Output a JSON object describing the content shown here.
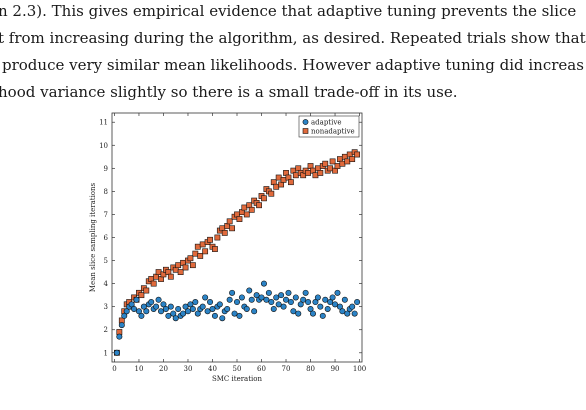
{
  "paragraph": {
    "lines": [
      "n 2.3). This gives empirical evidence that adaptive tuning prevents the slice",
      "t from increasing during the algorithm, as desired. Repeated trials show that",
      "produce very similar mean likelihoods. However adaptive tuning did increas",
      "hood variance slightly so there is a small trade-off in its use."
    ]
  },
  "chart_data": {
    "type": "scatter",
    "xlabel": "SMC iteration",
    "ylabel": "Mean slice sampling iterations",
    "xlim": [
      -1,
      101
    ],
    "ylim": [
      0.6,
      11.4
    ],
    "xticks": [
      0,
      10,
      20,
      30,
      40,
      50,
      60,
      70,
      80,
      90,
      100
    ],
    "yticks": [
      1,
      2,
      3,
      4,
      5,
      6,
      7,
      8,
      9,
      10,
      11
    ],
    "grid": false,
    "legend_position": "top-right",
    "series": [
      {
        "name": "adaptive",
        "marker": "circle",
        "color": "#2b83c6",
        "x": [
          1,
          2,
          3,
          4,
          5,
          6,
          7,
          8,
          9,
          10,
          11,
          12,
          13,
          14,
          15,
          16,
          17,
          18,
          19,
          20,
          21,
          22,
          23,
          24,
          25,
          26,
          27,
          28,
          29,
          30,
          31,
          32,
          33,
          34,
          35,
          36,
          37,
          38,
          39,
          40,
          41,
          42,
          43,
          44,
          45,
          46,
          47,
          48,
          49,
          50,
          51,
          52,
          53,
          54,
          55,
          56,
          57,
          58,
          59,
          60,
          61,
          62,
          63,
          64,
          65,
          66,
          67,
          68,
          69,
          70,
          71,
          72,
          73,
          74,
          75,
          76,
          77,
          78,
          79,
          80,
          81,
          82,
          83,
          84,
          85,
          86,
          87,
          88,
          89,
          90,
          91,
          92,
          93,
          94,
          95,
          96,
          97,
          98,
          99
        ],
        "y": [
          1.0,
          1.7,
          2.2,
          2.6,
          2.8,
          3.0,
          3.1,
          2.9,
          3.3,
          2.8,
          2.6,
          3.0,
          2.8,
          3.1,
          3.2,
          2.9,
          3.0,
          3.3,
          2.8,
          3.1,
          2.9,
          2.6,
          3.0,
          2.7,
          2.5,
          2.9,
          2.6,
          2.7,
          3.0,
          2.8,
          3.1,
          2.9,
          3.2,
          2.7,
          2.9,
          3.0,
          3.4,
          2.8,
          3.2,
          2.9,
          2.6,
          3.0,
          3.1,
          2.5,
          2.8,
          2.9,
          3.3,
          3.6,
          2.7,
          3.2,
          2.6,
          3.4,
          3.0,
          2.9,
          3.7,
          3.3,
          2.8,
          3.5,
          3.3,
          3.4,
          4.0,
          3.3,
          3.6,
          3.2,
          2.9,
          3.4,
          3.1,
          3.5,
          3.0,
          3.3,
          3.6,
          3.2,
          2.8,
          3.4,
          2.7,
          3.1,
          3.3,
          3.6,
          3.2,
          2.9,
          2.7,
          3.2,
          3.4,
          3.0,
          2.6,
          3.3,
          2.9,
          3.2,
          3.4,
          3.1,
          3.6,
          3.0,
          2.8,
          3.3,
          2.7,
          2.9,
          3.0,
          2.7,
          3.2
        ]
      },
      {
        "name": "nonadaptive",
        "marker": "square",
        "color": "#e06a3c",
        "x": [
          1,
          2,
          3,
          4,
          5,
          6,
          7,
          8,
          9,
          10,
          11,
          12,
          13,
          14,
          15,
          16,
          17,
          18,
          19,
          20,
          21,
          22,
          23,
          24,
          25,
          26,
          27,
          28,
          29,
          30,
          31,
          32,
          33,
          34,
          35,
          36,
          37,
          38,
          39,
          40,
          41,
          42,
          43,
          44,
          45,
          46,
          47,
          48,
          49,
          50,
          51,
          52,
          53,
          54,
          55,
          56,
          57,
          58,
          59,
          60,
          61,
          62,
          63,
          64,
          65,
          66,
          67,
          68,
          69,
          70,
          71,
          72,
          73,
          74,
          75,
          76,
          77,
          78,
          79,
          80,
          81,
          82,
          83,
          84,
          85,
          86,
          87,
          88,
          89,
          90,
          91,
          92,
          93,
          94,
          95,
          96,
          97,
          98,
          99
        ],
        "y": [
          1.0,
          1.9,
          2.4,
          2.8,
          3.1,
          3.2,
          3.0,
          3.4,
          3.3,
          3.6,
          3.5,
          3.8,
          3.7,
          4.1,
          4.2,
          4.0,
          4.3,
          4.5,
          4.2,
          4.4,
          4.6,
          4.5,
          4.3,
          4.7,
          4.6,
          4.8,
          4.5,
          4.9,
          4.7,
          5.0,
          5.1,
          4.8,
          5.3,
          5.6,
          5.2,
          5.7,
          5.4,
          5.8,
          5.9,
          5.6,
          5.5,
          6.0,
          6.3,
          6.4,
          6.2,
          6.5,
          6.7,
          6.4,
          6.9,
          7.0,
          6.8,
          7.1,
          7.3,
          7.0,
          7.4,
          7.2,
          7.6,
          7.5,
          7.4,
          7.8,
          7.7,
          8.1,
          8.0,
          7.9,
          8.4,
          8.2,
          8.6,
          8.3,
          8.5,
          8.8,
          8.6,
          8.4,
          8.9,
          8.7,
          9.0,
          8.8,
          8.7,
          8.9,
          8.8,
          9.1,
          8.9,
          8.7,
          9.0,
          8.8,
          9.1,
          9.2,
          8.9,
          9.0,
          9.3,
          8.9,
          9.1,
          9.4,
          9.2,
          9.5,
          9.3,
          9.6,
          9.4,
          9.7,
          9.6
        ]
      }
    ]
  }
}
